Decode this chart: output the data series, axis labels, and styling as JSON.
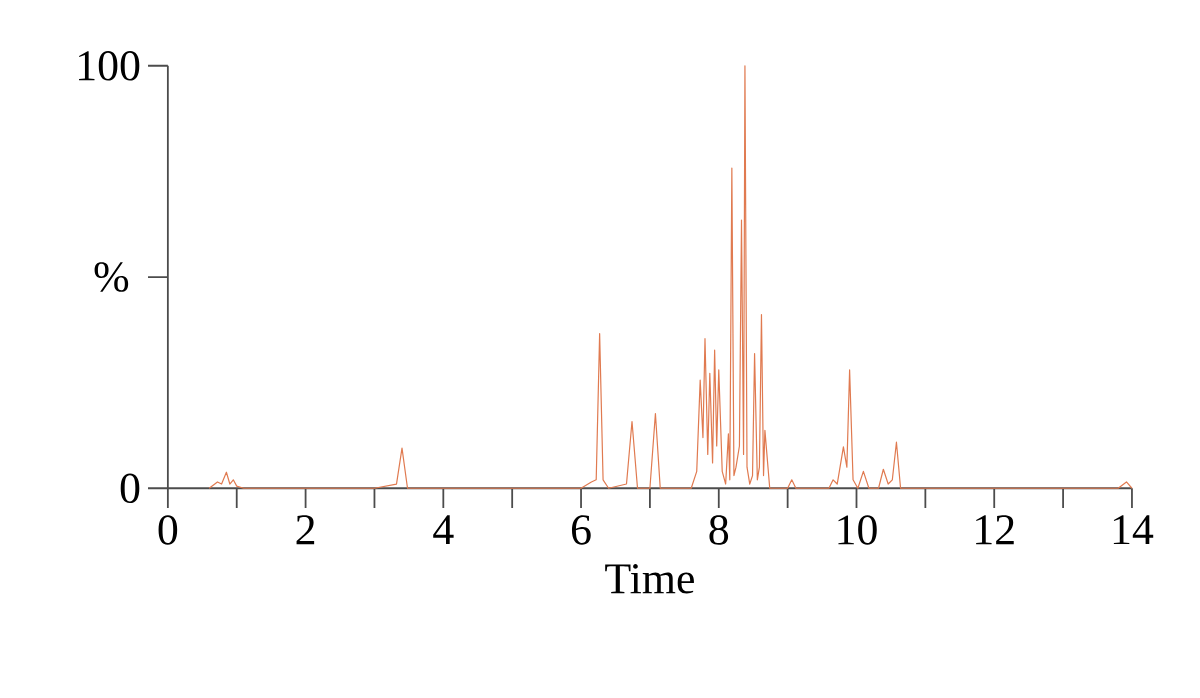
{
  "chart_data": {
    "type": "line",
    "xlabel": "Time",
    "ylabel": "%",
    "x": [
      0.6,
      0.72,
      0.78,
      0.85,
      0.9,
      0.95,
      1.0,
      1.1,
      3.0,
      3.32,
      3.4,
      3.48,
      3.6,
      6.0,
      6.15,
      6.22,
      6.27,
      6.32,
      6.4,
      6.66,
      6.74,
      6.82,
      7.0,
      7.08,
      7.15,
      7.6,
      7.68,
      7.73,
      7.77,
      7.8,
      7.84,
      7.87,
      7.91,
      7.94,
      7.97,
      8.0,
      8.05,
      8.1,
      8.14,
      8.16,
      8.19,
      8.22,
      8.25,
      8.3,
      8.33,
      8.36,
      8.38,
      8.41,
      8.45,
      8.49,
      8.52,
      8.56,
      8.59,
      8.62,
      8.65,
      8.67,
      8.74,
      9.0,
      9.06,
      9.12,
      9.6,
      9.66,
      9.72,
      9.81,
      9.86,
      9.9,
      9.95,
      10.02,
      10.1,
      10.18,
      10.32,
      10.39,
      10.46,
      10.52,
      10.58,
      10.64,
      13.8,
      13.92,
      14.0
    ],
    "values": [
      0,
      1.5,
      1,
      3.8,
      1,
      2,
      0.5,
      0,
      0,
      1,
      9.5,
      0,
      0,
      0,
      1.5,
      2,
      36.6,
      2,
      0,
      1,
      15.8,
      0,
      0,
      17.7,
      0,
      0,
      4,
      25.6,
      12,
      35.4,
      8,
      27.2,
      6,
      32.7,
      10,
      28,
      4,
      1,
      12.9,
      2,
      75.8,
      3,
      5,
      10,
      63.5,
      8,
      100,
      5,
      1,
      3,
      31.9,
      2,
      5,
      41.1,
      3,
      13.7,
      0,
      0,
      2,
      0,
      0,
      2,
      1,
      9.8,
      5,
      28,
      2,
      0,
      4,
      0,
      0,
      4.5,
      1,
      2,
      10.9,
      0,
      0,
      1.5,
      0
    ],
    "color": "#e07a50",
    "xlim": [
      0,
      14
    ],
    "ylim": [
      0,
      100
    ],
    "xticks": [
      0,
      {
        "value": 1,
        "label": null
      },
      2,
      {
        "value": 3,
        "label": null
      },
      4,
      {
        "value": 5,
        "label": null
      },
      6,
      {
        "value": 7,
        "label": null
      },
      8,
      {
        "value": 9,
        "label": null
      },
      10,
      {
        "value": 11,
        "label": null
      },
      12,
      {
        "value": 13,
        "label": null
      },
      14
    ],
    "yticks": [
      0,
      {
        "value": 50,
        "label": null
      },
      100
    ],
    "grid": false,
    "marker": "none",
    "line_style": "solid"
  }
}
